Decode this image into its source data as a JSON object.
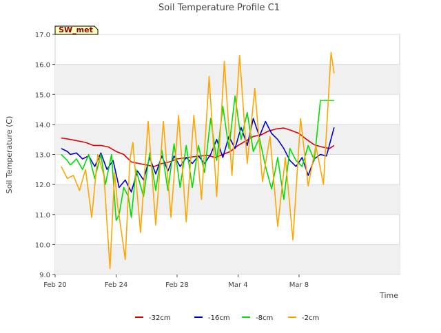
{
  "chart_data": {
    "type": "line",
    "title": "Soil Temperature Profile C1",
    "xlabel": "Time",
    "ylabel": "Soil Temperature (C)",
    "badge": "SW_met",
    "ylim": [
      9.0,
      17.0
    ],
    "yticks": [
      "9.0",
      "10.0",
      "11.0",
      "12.0",
      "13.0",
      "14.0",
      "15.0",
      "16.0",
      "17.0"
    ],
    "xlim_days": [
      0,
      22.6
    ],
    "xticks": [
      {
        "label": "Feb 20",
        "day": 0
      },
      {
        "label": "Feb 24",
        "day": 4
      },
      {
        "label": "Feb 28",
        "day": 8
      },
      {
        "label": "Mar 4",
        "day": 12
      },
      {
        "label": "Mar 8",
        "day": 16
      }
    ],
    "grid": true,
    "legend_position": "bottom",
    "series": [
      {
        "name": "-32cm",
        "color": "#dd0000",
        "x": [
          0.4,
          1.0,
          2.0,
          2.5,
          3.0,
          3.5,
          4.0,
          4.5,
          5.0,
          5.5,
          6.0,
          6.5,
          7.0,
          7.5,
          8.0,
          9.0,
          10.0,
          10.5,
          11.0,
          11.5,
          12.0,
          12.5,
          13.0,
          13.5,
          14.0,
          14.5,
          15.0,
          15.5,
          16.0,
          16.5,
          17.0,
          17.5,
          18.0,
          18.3
        ],
        "y": [
          13.55,
          13.5,
          13.4,
          13.3,
          13.3,
          13.25,
          13.1,
          13.0,
          12.75,
          12.7,
          12.65,
          12.6,
          12.7,
          12.75,
          12.85,
          12.92,
          12.97,
          12.9,
          13.0,
          13.1,
          13.3,
          13.45,
          13.6,
          13.65,
          13.78,
          13.85,
          13.88,
          13.8,
          13.7,
          13.5,
          13.32,
          13.25,
          13.2,
          13.3
        ]
      },
      {
        "name": "-16cm",
        "color": "#0000cc",
        "x": [
          0.4,
          0.8,
          1.0,
          1.4,
          1.8,
          2.2,
          2.6,
          3.0,
          3.4,
          3.8,
          4.2,
          4.6,
          5.0,
          5.4,
          5.8,
          6.2,
          6.6,
          7.0,
          7.4,
          7.8,
          8.2,
          8.6,
          9.0,
          9.4,
          9.8,
          10.2,
          10.6,
          11.0,
          11.4,
          11.8,
          12.2,
          12.6,
          13.0,
          13.4,
          13.8,
          14.2,
          14.6,
          15.0,
          15.4,
          15.8,
          16.2,
          16.6,
          17.0,
          17.4,
          17.8,
          18.3
        ],
        "y": [
          13.2,
          13.1,
          13.0,
          13.05,
          12.85,
          12.95,
          12.6,
          13.05,
          12.5,
          12.8,
          11.9,
          12.15,
          11.75,
          12.45,
          12.15,
          12.9,
          12.35,
          12.95,
          12.45,
          12.95,
          12.6,
          12.9,
          12.7,
          12.95,
          12.7,
          13.0,
          13.5,
          12.9,
          13.6,
          13.2,
          13.9,
          13.3,
          14.2,
          13.6,
          14.1,
          13.7,
          13.5,
          13.2,
          12.8,
          12.6,
          12.9,
          12.3,
          12.85,
          13.0,
          12.95,
          13.9
        ]
      },
      {
        "name": "-8cm",
        "color": "#00dd00",
        "x": [
          0.4,
          0.8,
          1.0,
          1.4,
          1.8,
          2.2,
          2.6,
          3.0,
          3.3,
          3.7,
          4.0,
          4.2,
          4.5,
          4.8,
          5.0,
          5.3,
          5.8,
          6.2,
          6.6,
          7.0,
          7.4,
          7.8,
          8.2,
          8.6,
          9.0,
          9.4,
          9.8,
          10.2,
          10.6,
          11.0,
          11.4,
          11.8,
          12.2,
          12.6,
          13.0,
          13.4,
          13.8,
          14.2,
          14.6,
          15.0,
          15.4,
          15.8,
          16.2,
          16.6,
          17.0,
          17.4,
          17.8,
          18.3
        ],
        "y": [
          13.0,
          12.8,
          12.65,
          12.85,
          12.5,
          13.0,
          12.2,
          13.0,
          12.0,
          13.0,
          10.8,
          11.0,
          11.9,
          11.6,
          10.9,
          12.5,
          11.6,
          13.05,
          11.8,
          13.15,
          11.8,
          13.35,
          11.9,
          13.3,
          11.9,
          13.3,
          12.4,
          14.2,
          12.8,
          14.6,
          13.2,
          14.95,
          13.5,
          14.4,
          13.1,
          13.55,
          12.6,
          11.85,
          12.9,
          11.5,
          13.2,
          12.8,
          12.6,
          13.3,
          12.8,
          14.8,
          14.8,
          14.8
        ]
      },
      {
        "name": "-2cm",
        "color": "#ffa500",
        "x": [
          0.4,
          0.8,
          1.2,
          1.6,
          2.0,
          2.4,
          2.8,
          3.2,
          3.6,
          3.9,
          4.1,
          4.3,
          4.6,
          4.9,
          5.1,
          5.6,
          6.1,
          6.6,
          7.1,
          7.6,
          8.1,
          8.6,
          9.1,
          9.6,
          10.1,
          10.6,
          11.1,
          11.6,
          12.1,
          12.6,
          13.1,
          13.6,
          14.1,
          14.6,
          15.1,
          15.6,
          16.1,
          16.6,
          17.1,
          17.6,
          18.1,
          18.3
        ],
        "y": [
          12.6,
          12.2,
          12.3,
          11.8,
          12.5,
          10.9,
          13.0,
          12.3,
          9.2,
          12.4,
          11.3,
          10.6,
          9.5,
          12.8,
          13.4,
          10.4,
          14.1,
          10.65,
          14.1,
          10.9,
          14.3,
          10.75,
          14.3,
          11.5,
          15.6,
          11.6,
          16.1,
          12.3,
          16.3,
          12.7,
          15.2,
          12.1,
          13.6,
          10.6,
          12.9,
          10.15,
          14.2,
          11.95,
          13.3,
          12.0,
          16.4,
          15.7
        ]
      }
    ]
  }
}
